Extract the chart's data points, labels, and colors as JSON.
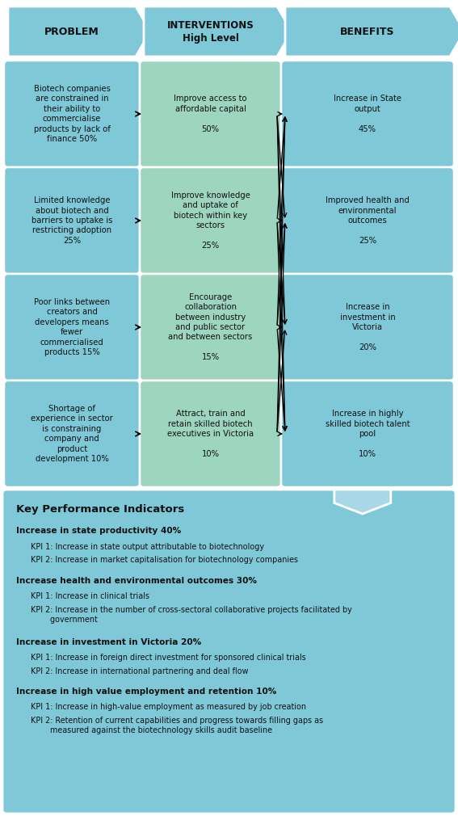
{
  "fig_width": 5.67,
  "fig_height": 10.1,
  "dpi": 100,
  "bg_color": "#ffffff",
  "header_color": "#7ec8d8",
  "problem_color": "#7ec8d8",
  "intervention_color": "#9dd5c0",
  "benefit_color": "#7ec8d8",
  "kpi_color": "#7ec8d8",
  "headers": [
    "PROBLEM",
    "INTERVENTIONS\nHigh Level",
    "BENEFITS"
  ],
  "problems": [
    "Biotech companies\nare constrained in\ntheir ability to\ncommercialise\nproducts by lack of\nfinance 50%",
    "Limited knowledge\nabout biotech and\nbarriers to uptake is\nrestricting adoption\n25%",
    "Poor links between\ncreators and\ndevelopers means\nfewer\ncommercialised\nproducts 15%",
    "Shortage of\nexperience in sector\nis constraining\ncompany and\nproduct\ndevelopment 10%"
  ],
  "interventions": [
    "Improve access to\naffordable capital\n\n50%",
    "Improve knowledge\nand uptake of\nbiotech within key\nsectors\n\n25%",
    "Encourage\ncollaboration\nbetween industry\nand public sector\nand between sectors\n\n15%",
    "Attract, train and\nretain skilled biotech\nexecutives in Victoria\n\n10%"
  ],
  "benefits": [
    "Increase in State\noutput\n\n45%",
    "Improved health and\nenvironmental\noutcomes\n\n25%",
    "Increase in\ninvestment in\nVictoria\n\n20%",
    "Increase in highly\nskilled biotech talent\npool\n\n10%"
  ],
  "kpi_title": "Key Performance Indicators",
  "kpi_items": [
    {
      "heading": "Increase in state productivity 40%",
      "lines": [
        "KPI 1: Increase in state output attributable to biotechnology",
        "KPI 2: Increase in market capitalisation for biotechnology companies"
      ]
    },
    {
      "heading": "Increase health and environmental outcomes 30%",
      "lines": [
        "KPI 1: Increase in clinical trials",
        "KPI 2: Increase in the number of cross-sectoral collaborative projects facilitated by\n        government"
      ]
    },
    {
      "heading": "Increase in investment in Victoria 20%",
      "lines": [
        "KPI 1: Increase in foreign direct investment for sponsored clinical trials",
        "KPI 2: Increase in international partnering and deal flow"
      ]
    },
    {
      "heading": "Increase in high value employment and retention 10%",
      "lines": [
        "KPI 1: Increase in high-value employment as measured by job creation",
        "KPI 2: Retention of current capabilities and progress towards filling gaps as\n        measured against the biotechnology skills audit baseline"
      ]
    }
  ]
}
